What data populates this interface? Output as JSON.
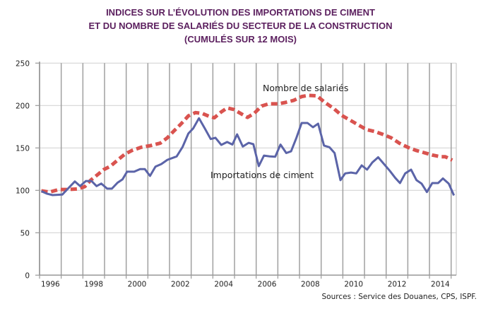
{
  "chart_data": {
    "type": "line",
    "title": [
      "INDICES SUR L’ÉVOLUTION DES IMPORTATIONS DE CIMENT",
      "ET DU NOMBRE DE SALARIÉS DU SECTEUR DE LA CONSTRUCTION",
      "(CUMULÉS SUR 12 MOIS)"
    ],
    "source": "Sources : Service des Douanes, CPS, ISPF.",
    "xlim": [
      1996,
      2015.24
    ],
    "ylim": [
      0,
      250
    ],
    "yticks": [
      0,
      50,
      100,
      150,
      200,
      250
    ],
    "xtick_labels": [
      "1996",
      "1998",
      "2000",
      "2002",
      "2004",
      "2006",
      "2008",
      "2010",
      "2012",
      "2014"
    ],
    "grid": true,
    "series": [
      {
        "name": "Nombre de salariés",
        "color": "#d9534f",
        "style": "dashed",
        "points": [
          [
            1996.08,
            99.4
          ],
          [
            1996.46,
            98
          ],
          [
            1996.9,
            101
          ],
          [
            1997.33,
            101
          ],
          [
            1997.76,
            101.7
          ],
          [
            1998.09,
            104.4
          ],
          [
            1998.36,
            112
          ],
          [
            1998.63,
            117.5
          ],
          [
            1998.96,
            124.4
          ],
          [
            1999.28,
            128.6
          ],
          [
            1999.6,
            135.6
          ],
          [
            1999.93,
            142.5
          ],
          [
            2000.26,
            147
          ],
          [
            2000.7,
            150.8
          ],
          [
            2001.13,
            152.8
          ],
          [
            2001.57,
            155.6
          ],
          [
            2001.9,
            162
          ],
          [
            2002.2,
            170
          ],
          [
            2002.54,
            178.6
          ],
          [
            2002.87,
            187.8
          ],
          [
            2003.2,
            191.7
          ],
          [
            2003.52,
            190.6
          ],
          [
            2003.85,
            187
          ],
          [
            2004.07,
            185.6
          ],
          [
            2004.39,
            192.5
          ],
          [
            2004.66,
            197.2
          ],
          [
            2004.97,
            195.3
          ],
          [
            2005.27,
            190.8
          ],
          [
            2005.6,
            186
          ],
          [
            2005.92,
            191
          ],
          [
            2006.25,
            199.4
          ],
          [
            2006.58,
            202
          ],
          [
            2007.01,
            202
          ],
          [
            2007.34,
            203.6
          ],
          [
            2007.72,
            206
          ],
          [
            2008.1,
            210.6
          ],
          [
            2008.42,
            212
          ],
          [
            2008.8,
            211.4
          ],
          [
            2009.18,
            203.6
          ],
          [
            2009.57,
            196.7
          ],
          [
            2009.95,
            188.3
          ],
          [
            2010.33,
            182.8
          ],
          [
            2010.71,
            177.2
          ],
          [
            2011.09,
            171.7
          ],
          [
            2011.47,
            169.4
          ],
          [
            2011.85,
            166
          ],
          [
            2012.23,
            162
          ],
          [
            2012.61,
            155.6
          ],
          [
            2012.99,
            150.8
          ],
          [
            2013.37,
            147.2
          ],
          [
            2013.75,
            144.4
          ],
          [
            2014.13,
            141.7
          ],
          [
            2014.51,
            139.7
          ],
          [
            2014.73,
            139.7
          ],
          [
            2015.05,
            135.6
          ]
        ]
      },
      {
        "name": "Importations de ciment",
        "color": "#5b64a8",
        "style": "solid",
        "points": [
          [
            1996.08,
            99
          ],
          [
            1996.35,
            96
          ],
          [
            1996.6,
            94.4
          ],
          [
            1997.05,
            95
          ],
          [
            1997.27,
            101
          ],
          [
            1997.63,
            110.5
          ],
          [
            1997.87,
            105
          ],
          [
            1998.14,
            111
          ],
          [
            1998.4,
            111
          ],
          [
            1998.63,
            105
          ],
          [
            1998.85,
            108
          ],
          [
            1999.12,
            102
          ],
          [
            1999.34,
            102
          ],
          [
            1999.6,
            109
          ],
          [
            1999.83,
            113
          ],
          [
            2000.04,
            122
          ],
          [
            2000.37,
            122
          ],
          [
            2000.64,
            125
          ],
          [
            2000.86,
            125
          ],
          [
            2001.1,
            117
          ],
          [
            2001.35,
            128
          ],
          [
            2001.62,
            131
          ],
          [
            2001.9,
            136
          ],
          [
            2002.33,
            140
          ],
          [
            2002.6,
            151
          ],
          [
            2002.87,
            167
          ],
          [
            2003.09,
            173
          ],
          [
            2003.36,
            185
          ],
          [
            2003.63,
            173
          ],
          [
            2003.9,
            160.5
          ],
          [
            2004.12,
            162
          ],
          [
            2004.39,
            153.6
          ],
          [
            2004.66,
            157
          ],
          [
            2004.9,
            154
          ],
          [
            2005.12,
            166
          ],
          [
            2005.38,
            151.7
          ],
          [
            2005.65,
            156
          ],
          [
            2005.87,
            154.4
          ],
          [
            2006.12,
            128.6
          ],
          [
            2006.36,
            141
          ],
          [
            2006.63,
            140
          ],
          [
            2006.88,
            139.7
          ],
          [
            2007.12,
            154
          ],
          [
            2007.39,
            144
          ],
          [
            2007.61,
            146
          ],
          [
            2007.86,
            162
          ],
          [
            2008.1,
            179.4
          ],
          [
            2008.37,
            179.4
          ],
          [
            2008.62,
            174.4
          ],
          [
            2008.86,
            178.6
          ],
          [
            2009.13,
            152.8
          ],
          [
            2009.38,
            150.8
          ],
          [
            2009.62,
            144
          ],
          [
            2009.89,
            112
          ],
          [
            2010.11,
            120
          ],
          [
            2010.38,
            121
          ],
          [
            2010.62,
            120
          ],
          [
            2010.87,
            129.4
          ],
          [
            2011.12,
            124.4
          ],
          [
            2011.36,
            132.8
          ],
          [
            2011.63,
            139
          ],
          [
            2011.9,
            131
          ],
          [
            2012.17,
            123
          ],
          [
            2012.42,
            114.7
          ],
          [
            2012.64,
            108.6
          ],
          [
            2012.88,
            120
          ],
          [
            2013.15,
            124.4
          ],
          [
            2013.4,
            112
          ],
          [
            2013.64,
            107.8
          ],
          [
            2013.88,
            98
          ],
          [
            2014.13,
            108.6
          ],
          [
            2014.4,
            108.6
          ],
          [
            2014.62,
            114
          ],
          [
            2014.89,
            107.8
          ],
          [
            2015.13,
            94
          ]
        ]
      }
    ]
  }
}
